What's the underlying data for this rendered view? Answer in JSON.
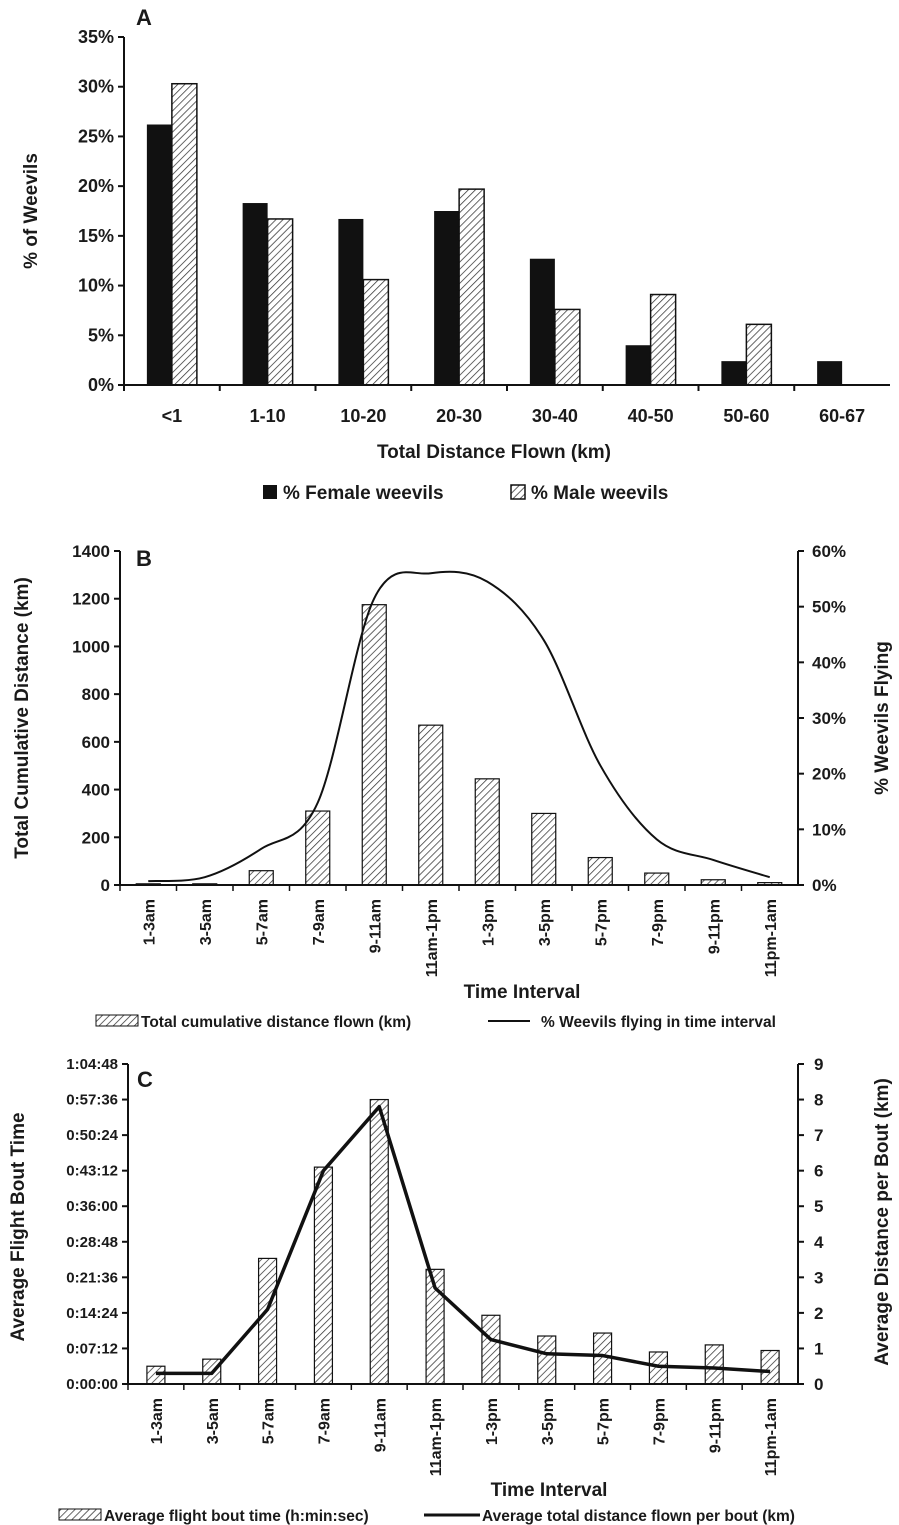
{
  "chart_data": [
    {
      "type": "bar",
      "panel_label": "A",
      "xlabel": "Total Distance Flown (km)",
      "ylabel": "% of Weevils",
      "ylim": [
        0,
        35
      ],
      "y_ticks": [
        "0%",
        "5%",
        "10%",
        "15%",
        "20%",
        "25%",
        "30%",
        "35%"
      ],
      "categories": [
        "<1",
        "1-10",
        "10-20",
        "20-30",
        "30-40",
        "40-50",
        "50-60",
        "60-67"
      ],
      "series": [
        {
          "name": "% Female weevils",
          "values": [
            26.2,
            18.3,
            16.7,
            17.5,
            12.7,
            4.0,
            2.4,
            2.4
          ],
          "color": "#111111"
        },
        {
          "name": "% Male weevils",
          "values": [
            30.3,
            16.7,
            10.6,
            19.7,
            7.6,
            9.1,
            6.1,
            0
          ],
          "color": "hatched"
        }
      ],
      "legend_position": "bottom",
      "grid": false
    },
    {
      "type": "bar",
      "panel_label": "B",
      "xlabel": "Time Interval",
      "ylabel": "Total Cumulative Distance  (km)",
      "y2label": "% Weevils Flying",
      "ylim": [
        0,
        1400
      ],
      "y2lim": [
        0,
        60
      ],
      "y_ticks": [
        "0",
        "200",
        "400",
        "600",
        "800",
        "1000",
        "1200",
        "1400"
      ],
      "y2_ticks": [
        "0%",
        "10%",
        "20%",
        "30%",
        "40%",
        "50%",
        "60%"
      ],
      "categories": [
        "1-3am",
        "3-5am",
        "5-7am",
        "7-9am",
        "9-11am",
        "11am-1pm",
        "1-3pm",
        "3-5pm",
        "5-7pm",
        "7-9pm",
        "9-11pm",
        "11pm-1am"
      ],
      "series": [
        {
          "name": "Total cumulative distance flown (km)",
          "kind": "bar",
          "axis": "left",
          "values": [
            5,
            5,
            60,
            310,
            1175,
            670,
            445,
            300,
            115,
            50,
            22,
            10
          ]
        },
        {
          "name": "% Weevils flying in time interval",
          "kind": "line",
          "axis": "right",
          "values": [
            0.7,
            1.4,
            6.5,
            14.8,
            51.5,
            56.0,
            54.5,
            44.0,
            21.5,
            8.2,
            4.5,
            1.4
          ]
        }
      ],
      "legend_position": "bottom",
      "grid": false
    },
    {
      "type": "bar",
      "panel_label": "C",
      "xlabel": "Time Interval",
      "ylabel": "Average Flight Bout Time",
      "y2label": "Average Distance per Bout (km)",
      "ylim": [
        "0:00:00",
        "1:04:48"
      ],
      "y2lim": [
        0,
        9
      ],
      "y_ticks": [
        "0:00:00",
        "0:07:12",
        "0:14:24",
        "0:21:36",
        "0:28:48",
        "0:36:00",
        "0:43:12",
        "0:50:24",
        "0:57:36",
        "1:04:48"
      ],
      "y2_ticks": [
        "0",
        "1",
        "2",
        "3",
        "4",
        "5",
        "6",
        "7",
        "8",
        "9"
      ],
      "categories": [
        "1-3am",
        "3-5am",
        "5-7am",
        "7-9am",
        "9-11am",
        "11am-1pm",
        "1-3pm",
        "3-5pm",
        "5-7pm",
        "7-9pm",
        "9-11pm",
        "11pm-1am"
      ],
      "series": [
        {
          "name": "Average flight bout time (h:min:sec)",
          "kind": "bar",
          "axis": "left",
          "values": [
            "0:03:36",
            "0:05:02",
            "0:25:26",
            "0:43:55",
            "0:57:36",
            "0:23:13",
            "0:13:55",
            "0:09:43",
            "0:10:19",
            "0:06:29",
            "0:07:55",
            "0:06:47"
          ]
        },
        {
          "name": "Average total distance flown per bout (km)",
          "kind": "line",
          "axis": "right",
          "values": [
            0.3,
            0.3,
            2.1,
            6.0,
            7.8,
            2.7,
            1.25,
            0.85,
            0.8,
            0.5,
            0.45,
            0.35
          ]
        }
      ],
      "legend_position": "bottom",
      "grid": false
    }
  ]
}
